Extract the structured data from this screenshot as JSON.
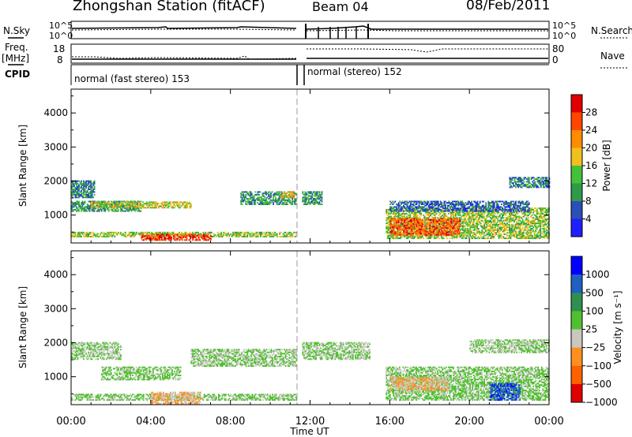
{
  "header": {
    "station": "Zhongshan Station (fitACF)",
    "beam": "Beam 04",
    "date": "08/Feb/2011"
  },
  "sidebar_left": {
    "nsky": "N.Sky",
    "freq": "Freq.",
    "freq_unit": "[MHz]",
    "cpid": "CPID"
  },
  "sidebar_right": {
    "nsearch": "N.Search",
    "nave": "Nave"
  },
  "mini_ticks": {
    "noise_left": [
      "10^5",
      "10^0"
    ],
    "noise_right": [
      "10^5",
      "10^0"
    ],
    "freq_left": [
      "18",
      "8"
    ],
    "nave_right": [
      "80",
      "0"
    ]
  },
  "cpid_segments": [
    {
      "text": "normal (fast stereo) 153",
      "start_h": 0.0,
      "end_h": 11.4
    },
    {
      "text": "normal (stereo) 152",
      "start_h": 11.6,
      "end_h": 24.0
    }
  ],
  "colors": {
    "power": [
      "#1f1fff",
      "#2a4fb8",
      "#2f9a4a",
      "#45c03a",
      "#f0c020",
      "#ff8c00",
      "#ff4500",
      "#e00000"
    ],
    "velocity": [
      "#0000ff",
      "#2060c0",
      "#2f8f50",
      "#50c030",
      "#c8c8c0",
      "#ff9020",
      "#ff6000",
      "#e00000"
    ]
  },
  "chart_data": [
    {
      "type": "heatmap",
      "name": "power",
      "x_ticks": [
        "00:00",
        "04:00",
        "08:00",
        "12:00",
        "16:00",
        "20:00",
        "00:00"
      ],
      "xlim_hours": [
        0,
        24
      ],
      "xlabel": "Time UT",
      "ylabel": "Slant Range [km]",
      "ylim_km": [
        180,
        4700
      ],
      "y_ticks": [
        1000,
        2000,
        3000,
        4000
      ],
      "colorbar": {
        "label": "Power [dB]",
        "ticks": [
          "28",
          "24",
          "20",
          "16",
          "12",
          "8",
          "4"
        ],
        "range": [
          0,
          30
        ]
      },
      "regions": [
        {
          "t": [
            0.0,
            11.3
          ],
          "r": [
            350,
            500
          ],
          "v": 14
        },
        {
          "t": [
            3.5,
            7.0
          ],
          "r": [
            250,
            450
          ],
          "v": 26
        },
        {
          "t": [
            0.0,
            3.5
          ],
          "r": [
            1100,
            1400
          ],
          "v": 10
        },
        {
          "t": [
            0.0,
            1.2
          ],
          "r": [
            1500,
            2000
          ],
          "v": 8
        },
        {
          "t": [
            1.0,
            6.0
          ],
          "r": [
            1200,
            1400
          ],
          "v": 16
        },
        {
          "t": [
            8.5,
            11.3
          ],
          "r": [
            1300,
            1700
          ],
          "v": 10
        },
        {
          "t": [
            10.5,
            11.2
          ],
          "r": [
            1500,
            1700
          ],
          "v": 18
        },
        {
          "t": [
            11.6,
            12.6
          ],
          "r": [
            1300,
            1700
          ],
          "v": 10
        },
        {
          "t": [
            15.8,
            24.0
          ],
          "r": [
            300,
            1200
          ],
          "v": 14
        },
        {
          "t": [
            16.0,
            19.5
          ],
          "r": [
            400,
            900
          ],
          "v": 24
        },
        {
          "t": [
            16.0,
            23.0
          ],
          "r": [
            1100,
            1400
          ],
          "v": 6
        },
        {
          "t": [
            22.0,
            24.0
          ],
          "r": [
            1800,
            2100
          ],
          "v": 8
        }
      ]
    },
    {
      "type": "heatmap",
      "name": "velocity",
      "x_ticks": [
        "00:00",
        "04:00",
        "08:00",
        "12:00",
        "16:00",
        "20:00",
        "00:00"
      ],
      "xlim_hours": [
        0,
        24
      ],
      "xlabel": "Time UT",
      "ylabel": "Slant Range [km]",
      "ylim_km": [
        180,
        4700
      ],
      "y_ticks": [
        1000,
        2000,
        3000,
        4000
      ],
      "colorbar": {
        "label": "Velocity [m s⁻¹]",
        "ticks": [
          "1000",
          "500",
          "100",
          "25",
          "−25",
          "−100",
          "−500",
          "−1000"
        ],
        "range": [
          -1200,
          1200
        ]
      },
      "regions": [
        {
          "t": [
            0.0,
            11.3
          ],
          "r": [
            300,
            500
          ],
          "v": 50
        },
        {
          "t": [
            4.0,
            6.5
          ],
          "r": [
            200,
            550
          ],
          "v": -300
        },
        {
          "t": [
            0.0,
            2.5
          ],
          "r": [
            1500,
            2000
          ],
          "v": 0
        },
        {
          "t": [
            1.5,
            5.5
          ],
          "r": [
            900,
            1300
          ],
          "v": 80
        },
        {
          "t": [
            6.0,
            11.3
          ],
          "r": [
            1300,
            1800
          ],
          "v": 0
        },
        {
          "t": [
            11.6,
            15.0
          ],
          "r": [
            1500,
            2000
          ],
          "v": 0
        },
        {
          "t": [
            15.8,
            24.0
          ],
          "r": [
            300,
            1300
          ],
          "v": 60
        },
        {
          "t": [
            16.0,
            19.0
          ],
          "r": [
            600,
            1000
          ],
          "v": -300
        },
        {
          "t": [
            21.0,
            22.5
          ],
          "r": [
            300,
            800
          ],
          "v": 800
        },
        {
          "t": [
            20.0,
            24.0
          ],
          "r": [
            1700,
            2100
          ],
          "v": 0
        }
      ]
    }
  ]
}
